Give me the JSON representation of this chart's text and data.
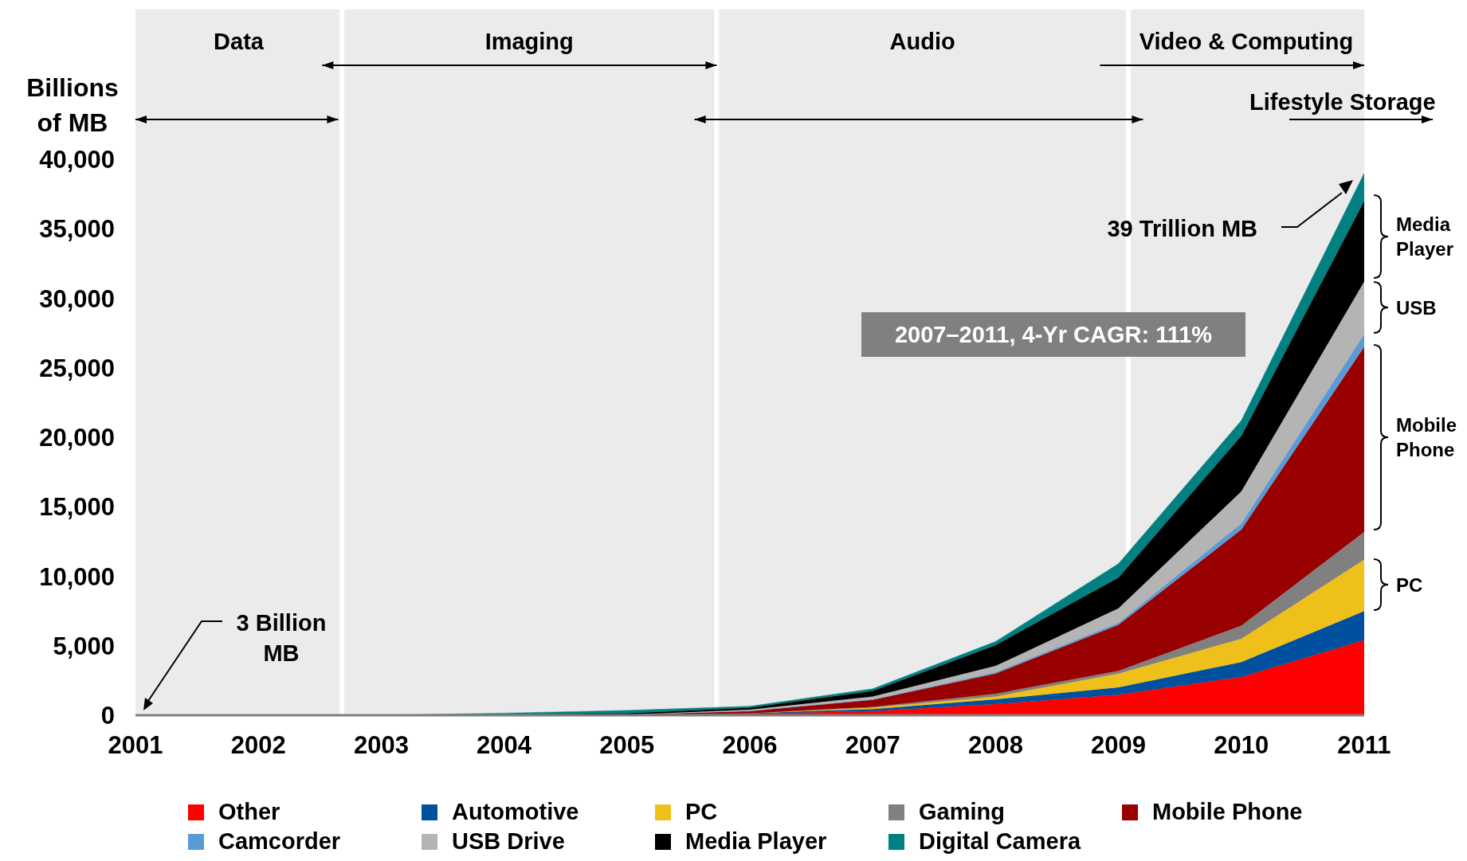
{
  "chart_data": {
    "type": "area",
    "stacked": true,
    "ylabel": "Billions of MB",
    "x": [
      2001,
      2002,
      2003,
      2004,
      2005,
      2006,
      2007,
      2008,
      2009,
      2010,
      2011
    ],
    "xlim": [
      2001,
      2011
    ],
    "xticks": [
      2001,
      2002,
      2003,
      2004,
      2005,
      2006,
      2007,
      2008,
      2009,
      2010,
      2011
    ],
    "ylim": [
      0,
      40000
    ],
    "yticks": [
      0,
      {
        "value": 5000,
        "label": "5,000"
      },
      {
        "value": 10000,
        "label": "10,000"
      },
      {
        "value": 15000,
        "label": "15,000"
      },
      {
        "value": 20000,
        "label": "20,000"
      },
      {
        "value": 25000,
        "label": "25,000"
      },
      {
        "value": 30000,
        "label": "30,000"
      },
      {
        "value": 35000,
        "label": "35,000"
      },
      {
        "value": 40000,
        "label": "40,000"
      }
    ],
    "legend": "bottom",
    "series": [
      {
        "name": "Other",
        "color": "#ff0000",
        "values": [
          0,
          0,
          0,
          0,
          0,
          100,
          300,
          800,
          1480,
          2750,
          5400
        ]
      },
      {
        "name": "Automotive",
        "color": "#0050a0",
        "values": [
          0,
          0,
          0,
          0,
          0,
          50,
          150,
          350,
          520,
          1080,
          2100
        ]
      },
      {
        "name": "PC",
        "color": "#f0c01a",
        "values": [
          0,
          0,
          0,
          0,
          0,
          0,
          100,
          200,
          1000,
          1670,
          3700
        ]
      },
      {
        "name": "Gaming",
        "color": "#808080",
        "values": [
          0,
          0,
          0,
          0,
          0,
          0,
          50,
          200,
          200,
          950,
          2000
        ]
      },
      {
        "name": "Mobile Phone",
        "color": "#990000",
        "values": [
          0,
          0,
          0,
          0,
          50,
          150,
          500,
          1450,
          3300,
          6900,
          13300
        ]
      },
      {
        "name": "Camcorder",
        "color": "#5b9bd5",
        "values": [
          0,
          0,
          0,
          0,
          0,
          0,
          50,
          100,
          150,
          450,
          900
        ]
      },
      {
        "name": "USB Drive",
        "color": "#b4b4b4",
        "values": [
          0,
          0,
          0,
          0,
          0,
          100,
          200,
          450,
          1050,
          2300,
          3800
        ]
      },
      {
        "name": "Media Player",
        "color": "#000000",
        "values": [
          0,
          0,
          0,
          50,
          100,
          150,
          400,
          1500,
          2200,
          4000,
          5800
        ]
      },
      {
        "name": "Digital Camera",
        "color": "#008080",
        "values": [
          0,
          0,
          0,
          100,
          200,
          100,
          150,
          250,
          1000,
          1100,
          2000
        ]
      }
    ],
    "bands": [
      {
        "axis": "x",
        "from": 2001,
        "to": 2002.68,
        "label": "Data",
        "color": "#ebebeb"
      },
      {
        "axis": "x",
        "from": 2002.68,
        "to": 2005.73,
        "label": "Imaging",
        "color": "#ebebeb"
      },
      {
        "axis": "x",
        "from": 2005.73,
        "to": 2009.08,
        "label": "Audio",
        "color": "#ebebeb"
      },
      {
        "axis": "x",
        "from": 2009.08,
        "to": 2011,
        "label": "Video & Computing",
        "color": "#ebebeb"
      }
    ],
    "annotations": [
      "3 Billion MB",
      "39 Trillion MB",
      "2007–2011, 4-Yr CAGR: 111%",
      "Lifestyle Storage",
      "Media Player",
      "USB",
      "Mobile Phone",
      "PC"
    ]
  }
}
